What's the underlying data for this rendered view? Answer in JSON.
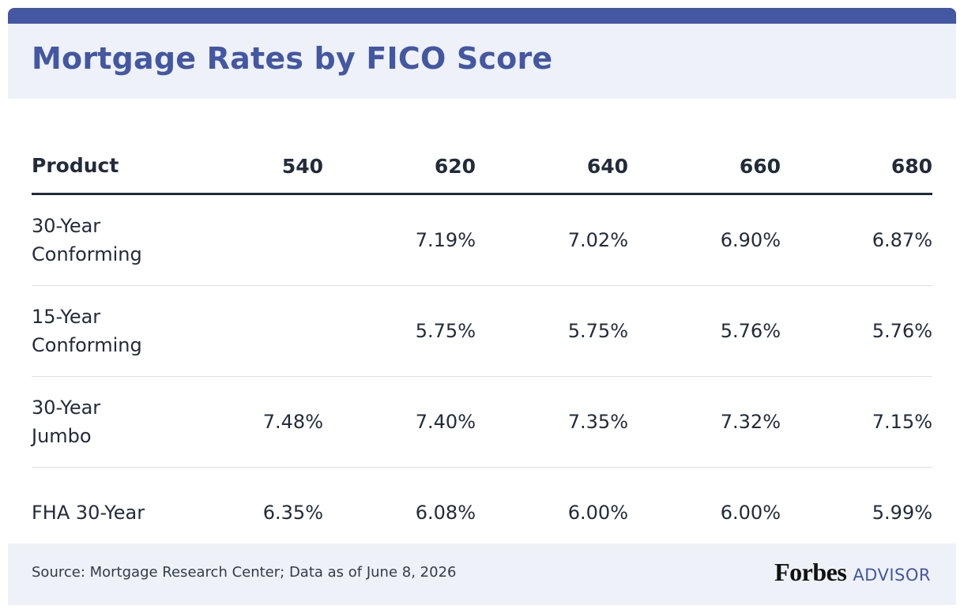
{
  "header": {
    "title": "Mortgage Rates by FICO Score"
  },
  "table": {
    "columns": [
      "Product",
      "540",
      "620",
      "640",
      "660",
      "680"
    ],
    "rows": [
      [
        "30-Year Conforming",
        null,
        "7.19%",
        "7.02%",
        "6.90%",
        "6.87%"
      ],
      [
        "15-Year Conforming",
        null,
        "5.75%",
        "5.75%",
        "5.76%",
        "5.76%"
      ],
      [
        "30-Year Jumbo",
        "7.48%",
        "7.40%",
        "7.35%",
        "7.32%",
        "7.15%"
      ],
      [
        "FHA 30-Year",
        "6.35%",
        "6.08%",
        "6.00%",
        "6.00%",
        "5.99%"
      ]
    ]
  },
  "footer": {
    "source": "Source: Mortgage Research Center; Data as of June 8, 2026",
    "logo": "Forbes",
    "logo_suffix": "ADVISOR"
  }
}
